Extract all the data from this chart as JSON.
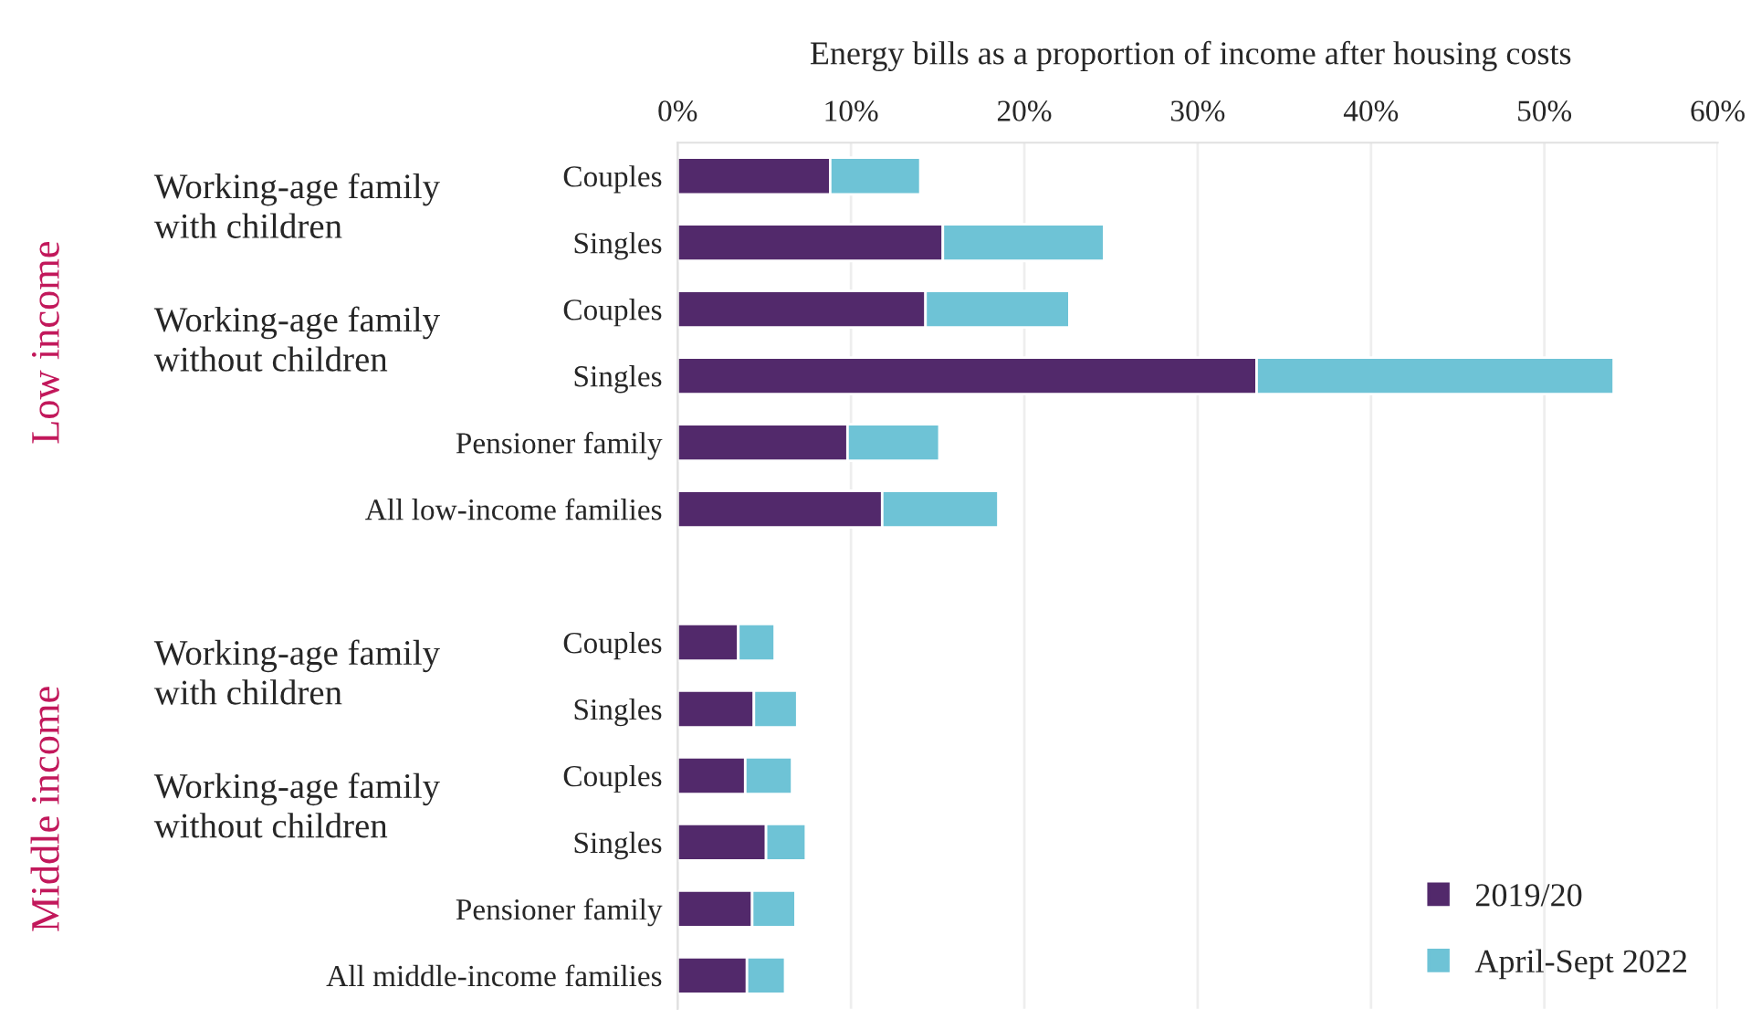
{
  "chart_data": {
    "type": "bar",
    "orientation": "horizontal",
    "stacked": true,
    "title": "Energy bills as a proportion of income after housing costs",
    "categories": [
      "Couples",
      "Singles",
      "Couples",
      "Singles",
      "Pensioner family",
      "All low-income families",
      null,
      "Couples",
      "Singles",
      "Couples",
      "Singles",
      "Pensioner family",
      "All middle-income families"
    ],
    "series": [
      {
        "name": "2019/20",
        "color": "#52296b",
        "values": [
          8.8,
          15.3,
          14.3,
          33.4,
          9.8,
          11.8,
          null,
          3.5,
          4.4,
          3.9,
          5.1,
          4.3,
          4.0
        ]
      },
      {
        "name": "April-Sept 2022",
        "color": "#6ec3d6",
        "values": [
          5.2,
          9.3,
          8.3,
          20.6,
          5.3,
          6.7,
          null,
          2.1,
          2.5,
          2.7,
          2.3,
          2.5,
          2.2
        ]
      }
    ],
    "xlim": [
      0,
      60
    ],
    "xticks": [
      {
        "value": 0,
        "label": "0%"
      },
      {
        "value": 10,
        "label": "10%"
      },
      {
        "value": 20,
        "label": "20%"
      },
      {
        "value": 30,
        "label": "30%"
      },
      {
        "value": 40,
        "label": "40%"
      },
      {
        "value": 50,
        "label": "50%"
      },
      {
        "value": 60,
        "label": "60%"
      }
    ],
    "annotations": [
      "Working-age family\nwith children",
      "Working-age family\nwithout children",
      "Working-age family\nwith children",
      "Working-age family\nwithout children",
      "Low income",
      "Middle income"
    ],
    "grid": "x",
    "legend": "bottom right"
  }
}
